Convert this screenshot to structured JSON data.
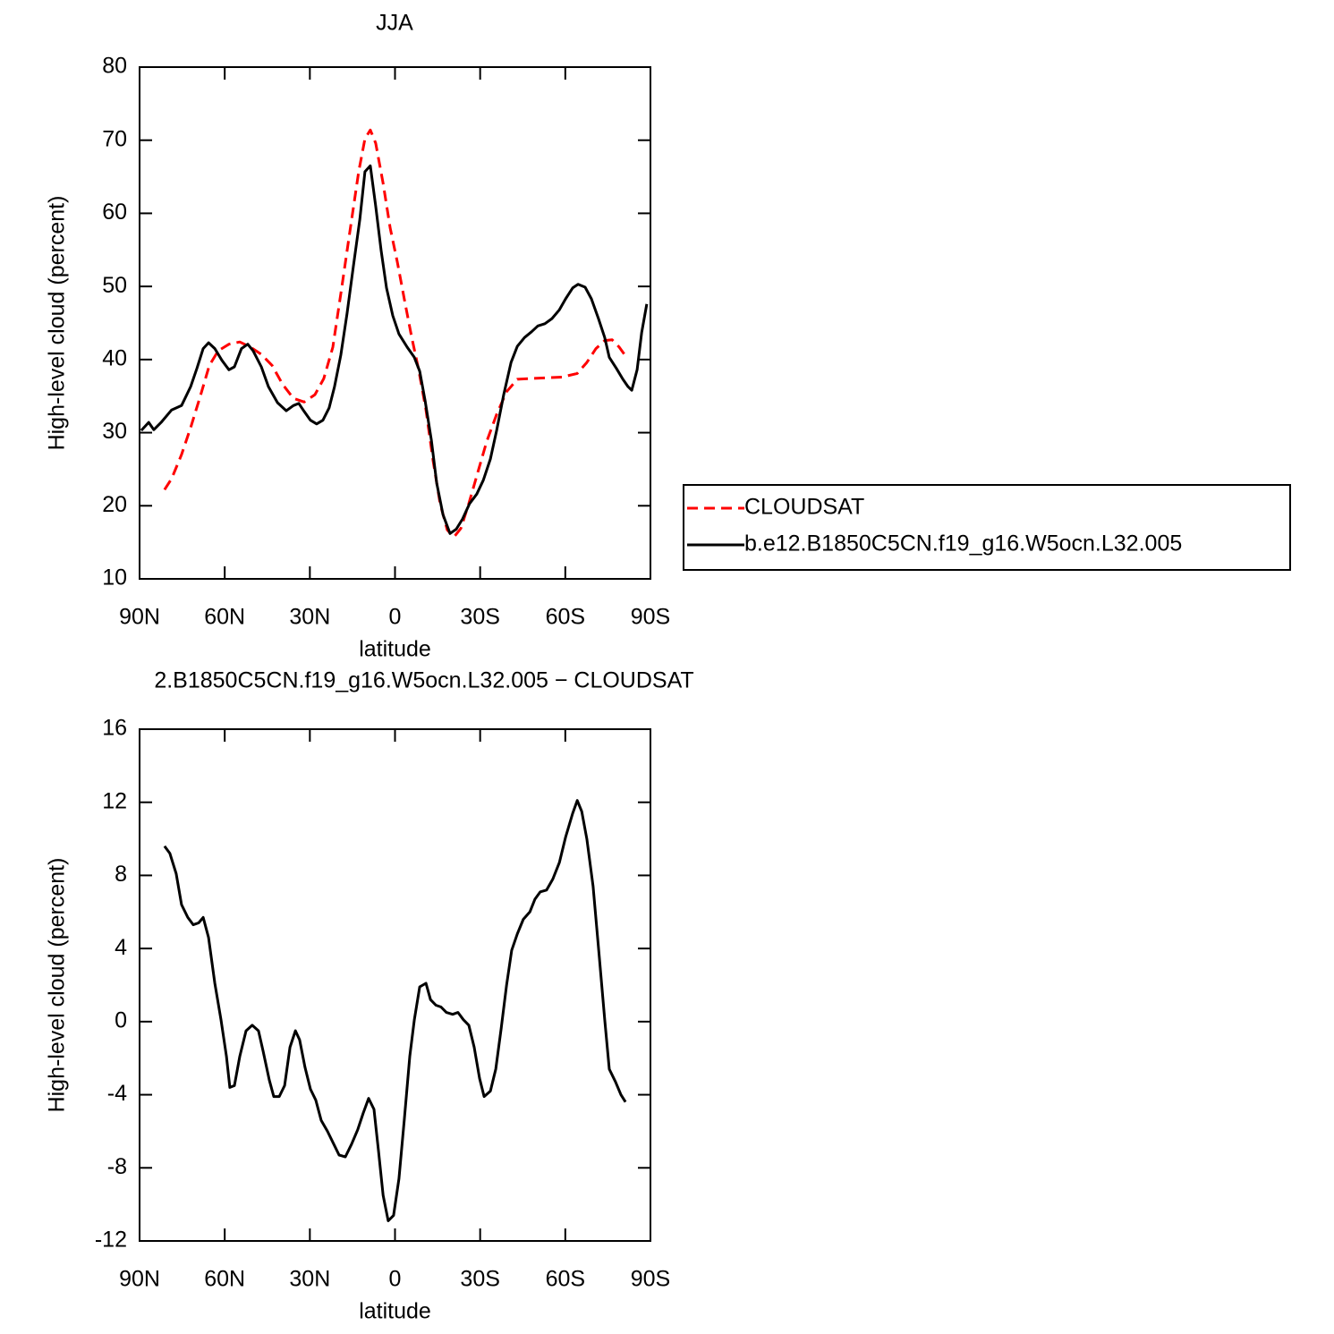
{
  "chart_data": [
    {
      "type": "line",
      "title": "JJA",
      "xlabel": "latitude",
      "ylabel": "High-level cloud (percent)",
      "xlim": [
        90,
        -90
      ],
      "xticks": [
        {
          "value": 90,
          "label": "90N"
        },
        {
          "value": 60,
          "label": "60N"
        },
        {
          "value": 30,
          "label": "30N"
        },
        0,
        {
          "value": -30,
          "label": "30S"
        },
        {
          "value": -60,
          "label": "60S"
        },
        {
          "value": -90,
          "label": "90S"
        }
      ],
      "ylim": [
        10,
        80
      ],
      "yticks": [
        10,
        20,
        30,
        40,
        50,
        60,
        70,
        80
      ],
      "legend": "right",
      "series": [
        {
          "name": "CLOUDSAT",
          "color": "#ff0000",
          "dash": "dashed",
          "x": [
            81.2,
            78.7,
            75.2,
            72,
            68.6,
            65.4,
            62.3,
            58.5,
            54.7,
            50.9,
            47.1,
            43.3,
            39.6,
            35.8,
            32,
            28.2,
            25.1,
            21.9,
            18.8,
            15.6,
            12.8,
            10.6,
            8.7,
            6.8,
            4.2,
            1.7,
            -0.8,
            -3.3,
            -5.8,
            -8.4,
            -10.9,
            -13.4,
            -15.9,
            -18.4,
            -20.7,
            -23.2,
            -26,
            -29.2,
            -32.3,
            -35.8,
            -39.3,
            -43.1,
            -47.5,
            -53.2,
            -58.8,
            -64.2,
            -67.6,
            -70.8,
            -73.9,
            -76.5,
            -79,
            -81.2
          ],
          "values": [
            22.2,
            23.7,
            27.0,
            30.7,
            35.0,
            39.2,
            41.2,
            42.1,
            42.4,
            41.7,
            40.7,
            39.2,
            36.6,
            34.7,
            34.2,
            35.2,
            37.4,
            41.7,
            49.8,
            58.3,
            65.7,
            70.2,
            71.4,
            69.6,
            64.1,
            58,
            53.4,
            48.2,
            43.2,
            38.5,
            33.1,
            26.2,
            20.3,
            16.7,
            15.7,
            16.9,
            20.3,
            24.6,
            28.8,
            32.5,
            35.6,
            37.3,
            37.4,
            37.5,
            37.6,
            38.1,
            39.6,
            41.5,
            42.6,
            42.7,
            41.7,
            40.5
          ]
        },
        {
          "name": "b.e12.B1850C5CN.f19_g16.W5ocn.L32.005",
          "color": "#000000",
          "dash": "solid",
          "x": [
            89.4,
            86.8,
            85,
            82.4,
            78.7,
            75.2,
            72,
            69.8,
            67.6,
            65.7,
            63.5,
            61,
            58.5,
            56.6,
            54.1,
            51.9,
            50,
            47.1,
            44.6,
            41.4,
            38.3,
            35.8,
            33.9,
            32,
            29.8,
            27.6,
            25.4,
            23.2,
            21.3,
            19.1,
            16.9,
            14.7,
            12.4,
            10.6,
            8.7,
            6.8,
            4.9,
            3,
            0.8,
            -1.4,
            -4.3,
            -6.8,
            -8.7,
            -10.6,
            -12.8,
            -14.7,
            -16.9,
            -19.4,
            -21.6,
            -23.8,
            -26.3,
            -28.8,
            -31.1,
            -33.6,
            -35.8,
            -38.3,
            -40.9,
            -43.1,
            -45.6,
            -48.1,
            -50.3,
            -52.8,
            -55.3,
            -57.9,
            -60.1,
            -62.6,
            -64.5,
            -67,
            -69.2,
            -71.7,
            -73.9,
            -75.5,
            -78,
            -80.3,
            -82.1,
            -83.4,
            -85.3,
            -86.9,
            -88.7
          ],
          "values": [
            30.3,
            31.4,
            30.4,
            31.4,
            33.1,
            33.7,
            36.3,
            38.8,
            41.5,
            42.3,
            41.5,
            39.9,
            38.6,
            39.0,
            41.5,
            42.1,
            41.2,
            39,
            36.3,
            34.1,
            33.0,
            33.7,
            34.0,
            32.9,
            31.7,
            31.2,
            31.7,
            33.4,
            36.3,
            40.6,
            46.3,
            52.7,
            59.2,
            65.7,
            66.5,
            61,
            54.9,
            49.8,
            46,
            43.5,
            41.7,
            40.3,
            38.4,
            34.4,
            29,
            23.1,
            18.8,
            16.2,
            16.8,
            18.2,
            20.3,
            21.6,
            23.5,
            26.4,
            30.3,
            35.2,
            39.6,
            41.8,
            43.0,
            43.8,
            44.6,
            44.9,
            45.6,
            46.8,
            48.3,
            49.8,
            50.3,
            49.9,
            48.3,
            45.6,
            43.0,
            40.3,
            38.8,
            37.3,
            36.3,
            35.8,
            38.6,
            43.7,
            47.6
          ]
        }
      ]
    },
    {
      "type": "line",
      "title": "2.B1850C5CN.f19_g16.W5ocn.L32.005 − CLOUDSAT",
      "xlabel": "latitude",
      "ylabel": "High-level cloud (percent)",
      "xlim": [
        90,
        -90
      ],
      "xticks": [
        {
          "value": 90,
          "label": "90N"
        },
        {
          "value": 60,
          "label": "60N"
        },
        {
          "value": 30,
          "label": "30N"
        },
        0,
        {
          "value": -30,
          "label": "30S"
        },
        {
          "value": -60,
          "label": "60S"
        },
        {
          "value": -90,
          "label": "90S"
        }
      ],
      "ylim": [
        -12,
        16
      ],
      "yticks": [
        -12,
        -8,
        -4,
        0,
        4,
        8,
        12,
        16
      ],
      "series": [
        {
          "color": "#000000",
          "dash": "solid",
          "x": [
            81.2,
            79.3,
            77.1,
            75.2,
            73,
            71.1,
            69.2,
            67.6,
            65.7,
            63.5,
            61.3,
            59.4,
            58.2,
            56.6,
            54.7,
            52.5,
            50.3,
            48.1,
            46.5,
            44.3,
            42.7,
            40.8,
            38.9,
            37,
            35.1,
            33.6,
            31.7,
            29.8,
            27.9,
            26,
            23.8,
            21.6,
            19.7,
            17.5,
            15.3,
            13.1,
            11.2,
            9.3,
            7.4,
            5.8,
            4.2,
            2.4,
            0.5,
            -1.4,
            -3.3,
            -5.2,
            -6.8,
            -8.7,
            -10.9,
            -12.5,
            -14.4,
            -16.2,
            -18.1,
            -20.3,
            -22.2,
            -24.1,
            -26,
            -27.9,
            -29.8,
            -31.4,
            -33.6,
            -35.5,
            -37.4,
            -39.3,
            -41.1,
            -43.1,
            -45.2,
            -47.5,
            -49.3,
            -51.2,
            -53.4,
            -55.6,
            -57.9,
            -60.1,
            -62.6,
            -64.2,
            -65.8,
            -67.6,
            -69.8,
            -72,
            -73.9,
            -75.5,
            -77.7,
            -79.6,
            -81.2
          ],
          "values": [
            9.6,
            9.2,
            8.1,
            6.4,
            5.7,
            5.3,
            5.4,
            5.7,
            4.6,
            2.1,
            0.1,
            -1.9,
            -3.6,
            -3.5,
            -1.9,
            -0.5,
            -0.2,
            -0.5,
            -1.6,
            -3.2,
            -4.1,
            -4.1,
            -3.5,
            -1.4,
            -0.5,
            -1.0,
            -2.5,
            -3.7,
            -4.3,
            -5.4,
            -6.0,
            -6.7,
            -7.3,
            -7.4,
            -6.7,
            -5.9,
            -5,
            -4.2,
            -4.8,
            -7.1,
            -9.5,
            -10.9,
            -10.6,
            -8.6,
            -5.3,
            -1.9,
            0.1,
            1.9,
            2.1,
            1.2,
            0.9,
            0.8,
            0.5,
            0.4,
            0.5,
            0.1,
            -0.2,
            -1.4,
            -3.1,
            -4.1,
            -3.8,
            -2.6,
            -0.4,
            2.0,
            3.9,
            4.8,
            5.6,
            6,
            6.7,
            7.1,
            7.2,
            7.8,
            8.7,
            10.1,
            11.4,
            12.1,
            11.5,
            10,
            7.4,
            3.5,
            0.1,
            -2.6,
            -3.3,
            -4,
            -4.4
          ]
        }
      ]
    }
  ]
}
